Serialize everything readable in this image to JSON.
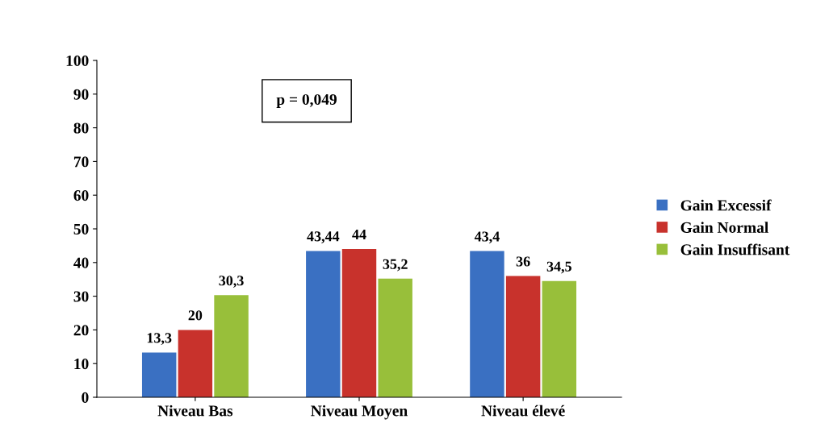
{
  "chart_data": {
    "type": "bar",
    "categories": [
      "Niveau Bas",
      "Niveau Moyen",
      "Niveau élevé"
    ],
    "series": [
      {
        "name": "Gain Excessif",
        "color": "#3a70c2",
        "values": [
          13.3,
          43.44,
          43.4
        ],
        "value_labels": [
          "13,3",
          "43,44",
          "43,4"
        ]
      },
      {
        "name": "Gain Normal",
        "color": "#c8322c",
        "values": [
          20,
          44,
          36
        ],
        "value_labels": [
          "20",
          "44",
          "36"
        ]
      },
      {
        "name": "Gain Insuffisant",
        "color": "#98bf3a",
        "values": [
          30.3,
          35.2,
          34.5
        ],
        "value_labels": [
          "30,3",
          "35,2",
          "34,5"
        ]
      }
    ],
    "ylim": [
      0,
      100
    ],
    "yticks": [
      0,
      10,
      20,
      30,
      40,
      50,
      60,
      70,
      80,
      90,
      100
    ],
    "annotations": [
      "p = 0,049"
    ],
    "legend": "right",
    "grid": false
  }
}
